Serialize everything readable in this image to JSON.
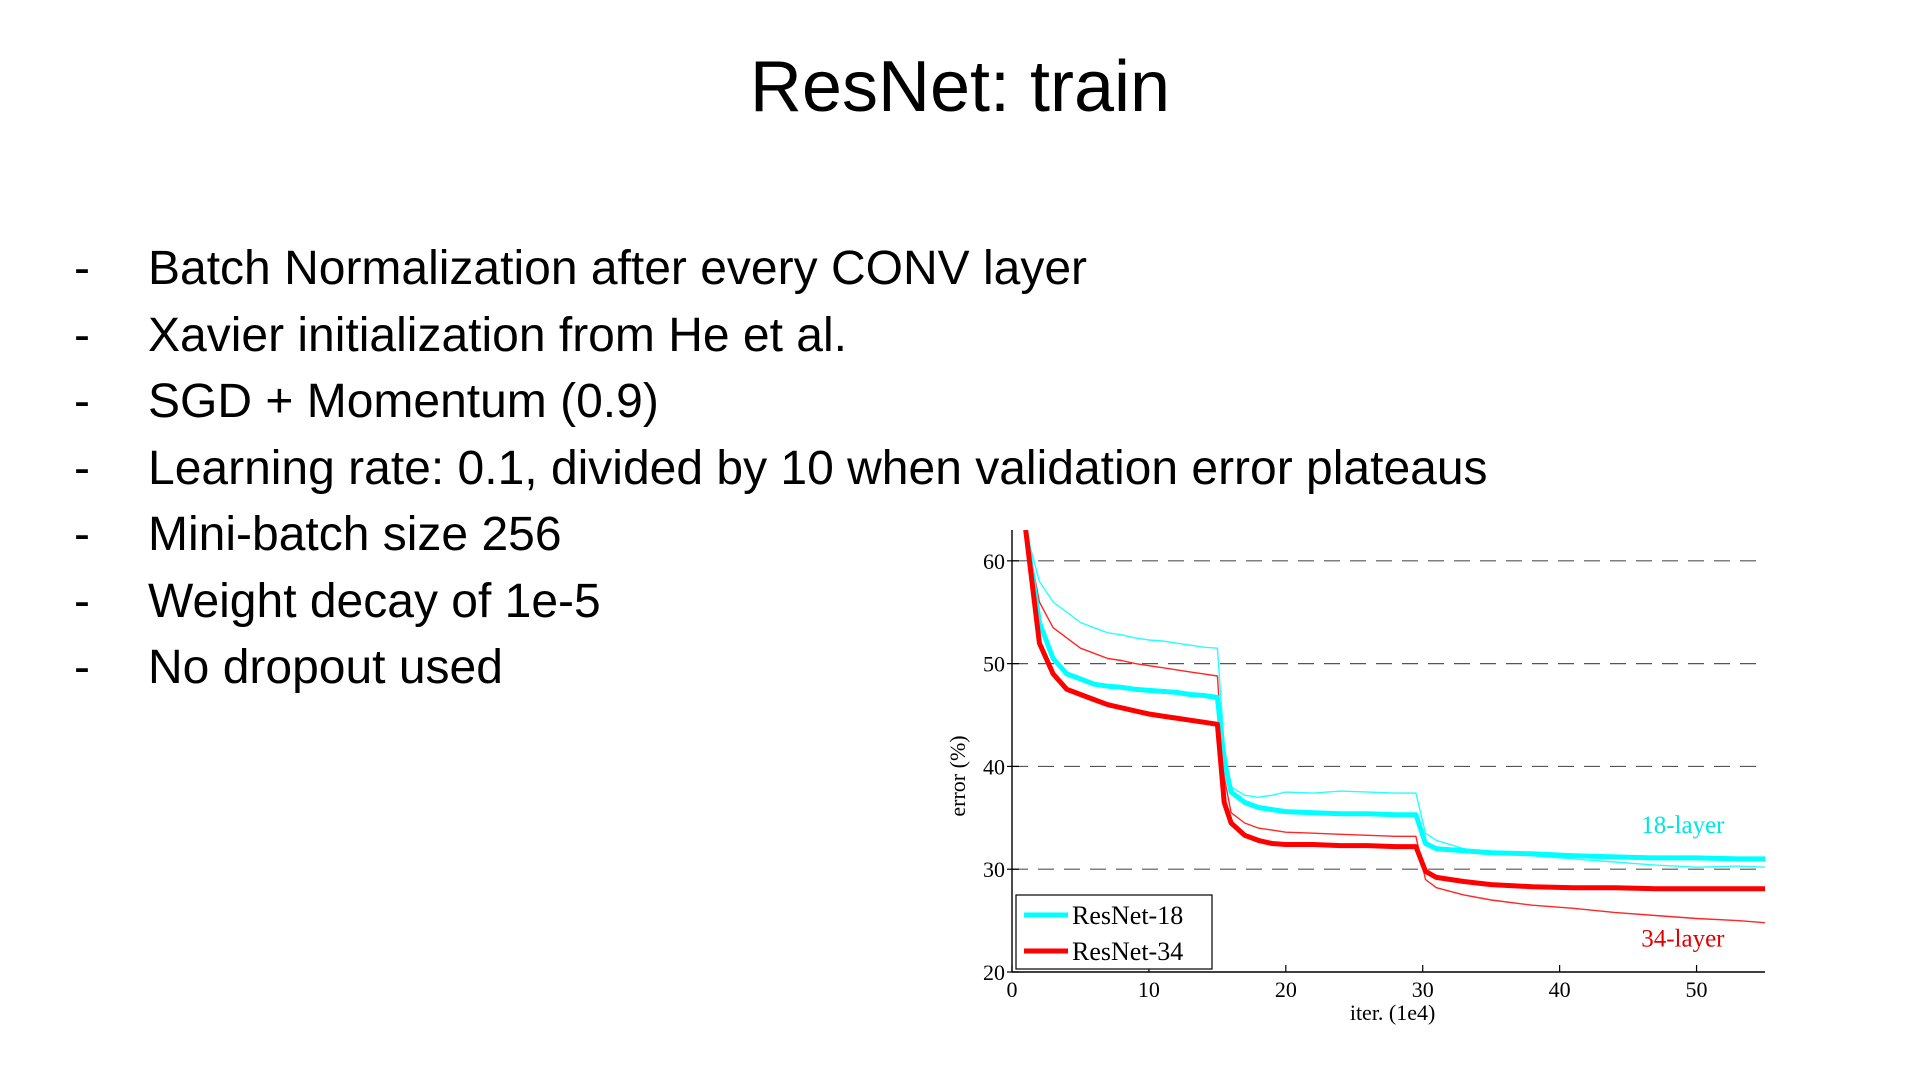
{
  "slide": {
    "title": "ResNet: train",
    "bullet_marker": "-",
    "bullets": [
      "Batch Normalization after every CONV layer",
      "Xavier initialization from He et al.",
      "SGD + Momentum (0.9)",
      "Learning rate: 0.1, divided by 10 when validation error plateaus",
      "Mini-batch size 256",
      "Weight decay of 1e-5",
      "No dropout used"
    ]
  },
  "chart_data": {
    "type": "line",
    "title": "",
    "xlabel": "iter. (1e4)",
    "ylabel": "error (%)",
    "xlim": [
      0,
      55
    ],
    "ylim": [
      20,
      63
    ],
    "xticks": [
      0,
      10,
      20,
      30,
      40,
      50
    ],
    "yticks": [
      20,
      30,
      40,
      50,
      60
    ],
    "grid": "dashed horizontal at 30, 40, 50, 60",
    "legend_position": "bottom-left",
    "annotations": [
      {
        "text": "18-layer",
        "color": "#00e5e5",
        "x": 49,
        "y": 33.5
      },
      {
        "text": "34-layer",
        "color": "#e00000",
        "x": 49,
        "y": 22.5
      }
    ],
    "series": [
      {
        "name": "ResNet-18",
        "style": "train",
        "color": "#00ffff",
        "x": [
          1,
          2,
          3,
          4,
          5,
          6,
          7,
          8,
          9,
          10,
          11,
          12,
          13,
          14,
          15,
          15.5,
          16,
          17,
          18,
          19,
          20,
          22,
          24,
          26,
          28,
          29.5,
          30.2,
          31,
          33,
          35,
          38,
          41,
          44,
          47,
          50,
          53,
          55
        ],
        "values": [
          63,
          54,
          50.5,
          49,
          48.5,
          48,
          47.8,
          47.7,
          47.5,
          47.4,
          47.3,
          47.2,
          47,
          46.9,
          46.7,
          40.5,
          37.5,
          36.5,
          36,
          35.8,
          35.6,
          35.5,
          35.4,
          35.4,
          35.3,
          35.3,
          32.5,
          32,
          31.8,
          31.6,
          31.5,
          31.3,
          31.2,
          31.1,
          31.1,
          31,
          31
        ]
      },
      {
        "name": "ResNet-34",
        "style": "train",
        "color": "#ff0000",
        "x": [
          1,
          2,
          3,
          4,
          5,
          6,
          7,
          8,
          9,
          10,
          11,
          12,
          13,
          14,
          15,
          15.5,
          16,
          17,
          18,
          19,
          20,
          22,
          24,
          26,
          28,
          29.5,
          30.2,
          31,
          33,
          35,
          38,
          41,
          44,
          47,
          50,
          53,
          55
        ],
        "values": [
          63,
          52,
          49,
          47.5,
          47,
          46.5,
          46,
          45.7,
          45.4,
          45.1,
          44.9,
          44.7,
          44.5,
          44.3,
          44.1,
          36.5,
          34.5,
          33.3,
          32.8,
          32.5,
          32.4,
          32.4,
          32.3,
          32.3,
          32.2,
          32.2,
          29.8,
          29.2,
          28.8,
          28.5,
          28.3,
          28.2,
          28.2,
          28.1,
          28.1,
          28.1,
          28.1
        ]
      },
      {
        "name": "",
        "style": "val",
        "color": "#00ffff",
        "x": [
          1,
          2,
          3,
          4,
          5,
          6,
          7,
          8,
          9,
          10,
          11,
          12,
          13,
          14,
          15,
          15.5,
          16,
          17,
          18,
          19,
          20,
          22,
          24,
          26,
          28,
          29.5,
          30.2,
          31,
          33,
          35,
          38,
          41,
          44,
          47,
          50,
          53,
          55
        ],
        "values": [
          63,
          58,
          56,
          55,
          54,
          53.5,
          53,
          52.8,
          52.5,
          52.3,
          52.2,
          52,
          51.8,
          51.6,
          51.5,
          42,
          38,
          37.2,
          37,
          37.2,
          37.5,
          37.4,
          37.6,
          37.5,
          37.4,
          37.4,
          33.5,
          32.8,
          32,
          31.6,
          31.3,
          31,
          30.7,
          30.4,
          30.2,
          30.3,
          30.2
        ]
      },
      {
        "name": "",
        "style": "val",
        "color": "#ff0000",
        "x": [
          1,
          2,
          3,
          4,
          5,
          6,
          7,
          8,
          9,
          10,
          11,
          12,
          13,
          14,
          15,
          15.5,
          16,
          17,
          18,
          19,
          20,
          22,
          24,
          26,
          28,
          29.5,
          30.2,
          31,
          33,
          35,
          38,
          41,
          44,
          47,
          50,
          53,
          55
        ],
        "values": [
          63,
          56,
          53.5,
          52.5,
          51.5,
          51,
          50.5,
          50.3,
          50,
          49.8,
          49.6,
          49.4,
          49.2,
          49,
          48.8,
          39,
          35.5,
          34.5,
          34,
          33.8,
          33.6,
          33.5,
          33.4,
          33.3,
          33.2,
          33.2,
          29,
          28.2,
          27.5,
          27,
          26.5,
          26.2,
          25.8,
          25.5,
          25.2,
          25,
          24.8
        ]
      }
    ]
  }
}
